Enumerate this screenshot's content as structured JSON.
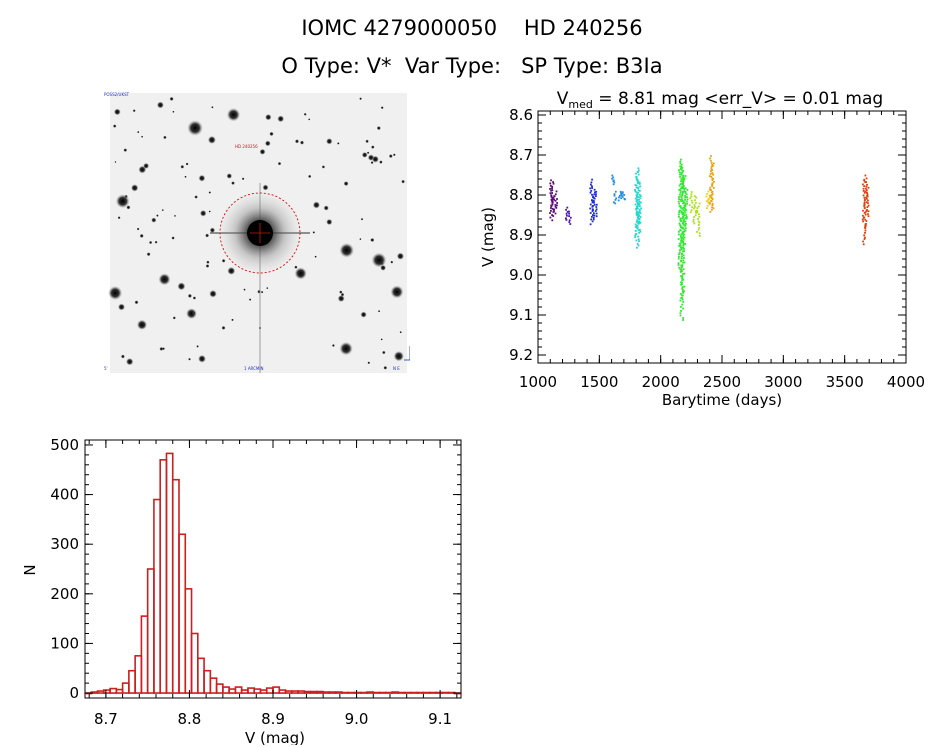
{
  "header": {
    "ids": "IOMC 4279000050    HD 240256",
    "types": "O Type: V*  Var Type:   SP Type: B3Ia"
  },
  "finder_chart": {
    "top_left_label": "POSS2/UKST",
    "center_label": "HD 240256",
    "bottom_left_label": "5'",
    "bottom_center_label": "1 ARCMIN",
    "bottom_right_label": "N E"
  },
  "chart_data": [
    {
      "type": "scatter",
      "title_prefix": "V",
      "title_sub": "med",
      "title_rest": " = 8.81 mag <err_V> = 0.01 mag",
      "xlabel": "Barytime (days)",
      "ylabel": "V (mag)",
      "xlim": [
        1000,
        4000
      ],
      "ylim": [
        9.22,
        8.59
      ],
      "xticks": [
        "1000",
        "1500",
        "2000",
        "2500",
        "3000",
        "3500",
        "4000"
      ],
      "yticks": [
        "8.6",
        "8.7",
        "8.8",
        "8.9",
        "9.0",
        "9.1",
        "9.2"
      ],
      "ytick_values": [
        8.6,
        8.7,
        8.8,
        8.9,
        9.0,
        9.1,
        9.2
      ],
      "series": [
        {
          "name": "s1",
          "color": "#5b0a7a",
          "x": [
            1100,
            1110,
            1125,
            1140
          ],
          "vmin": [
            8.77,
            8.76,
            8.8,
            8.79
          ],
          "vmax": [
            8.86,
            8.84,
            8.85,
            8.83
          ]
        },
        {
          "name": "s2",
          "color": "#4a12b0",
          "x": [
            1230,
            1250
          ],
          "vmin": [
            8.83,
            8.84
          ],
          "vmax": [
            8.86,
            8.87
          ]
        },
        {
          "name": "s3",
          "color": "#1f2be0",
          "x": [
            1430,
            1445,
            1460
          ],
          "vmin": [
            8.76,
            8.78,
            8.79
          ],
          "vmax": [
            8.87,
            8.86,
            8.85
          ]
        },
        {
          "name": "s4",
          "color": "#1a8ee8",
          "x": [
            1605,
            1620,
            1660,
            1690
          ],
          "vmin": [
            8.75,
            8.79,
            8.79,
            8.79
          ],
          "vmax": [
            8.77,
            8.82,
            8.81,
            8.81
          ]
        },
        {
          "name": "s5",
          "color": "#22d8cc",
          "x": [
            1795,
            1805,
            1815,
            1825
          ],
          "vmin": [
            8.74,
            8.73,
            8.76,
            8.8
          ],
          "vmax": [
            8.91,
            8.93,
            8.89,
            8.87
          ]
        },
        {
          "name": "s6",
          "color": "#2ee82e",
          "x": [
            2150,
            2165,
            2175,
            2185,
            2200
          ],
          "vmin": [
            8.72,
            8.71,
            8.73,
            8.75,
            8.78
          ],
          "vmax": [
            8.99,
            9.11,
            9.06,
            8.93,
            8.88
          ]
        },
        {
          "name": "s7",
          "color": "#a8e020",
          "x": [
            2240,
            2270,
            2300
          ],
          "vmin": [
            8.79,
            8.8,
            8.82
          ],
          "vmax": [
            8.84,
            8.87,
            8.9
          ]
        },
        {
          "name": "s8",
          "color": "#f0d020",
          "x": [
            2370,
            2385
          ],
          "vmin": [
            8.79,
            8.8
          ],
          "vmax": [
            8.83,
            8.82
          ]
        },
        {
          "name": "s9",
          "color": "#f0a010",
          "x": [
            2405,
            2415
          ],
          "vmin": [
            8.7,
            8.72
          ],
          "vmax": [
            8.84,
            8.83
          ]
        },
        {
          "name": "s10",
          "color": "#e04010",
          "x": [
            3650,
            3665,
            3680
          ],
          "vmin": [
            8.76,
            8.75,
            8.78
          ],
          "vmax": [
            8.92,
            8.88,
            8.85
          ]
        }
      ]
    },
    {
      "type": "bar",
      "title": "",
      "xlabel": "V (mag)",
      "ylabel": "N",
      "xlim": [
        8.675,
        9.125
      ],
      "ylim": [
        -10,
        510
      ],
      "xticks": [
        "8.7",
        "8.8",
        "8.9",
        "9.0",
        "9.1"
      ],
      "xtick_values": [
        8.7,
        8.8,
        8.9,
        9.0,
        9.1
      ],
      "yticks": [
        "0",
        "100",
        "200",
        "300",
        "400",
        "500"
      ],
      "ytick_values": [
        0,
        100,
        200,
        300,
        400,
        500
      ],
      "color": "#cc1f1f",
      "bin_start": 8.675,
      "bin_width": 0.0075,
      "values": [
        0,
        2,
        4,
        6,
        9,
        7,
        20,
        45,
        75,
        155,
        250,
        390,
        470,
        483,
        430,
        320,
        210,
        120,
        70,
        45,
        30,
        18,
        12,
        8,
        12,
        6,
        10,
        8,
        6,
        10,
        12,
        6,
        4,
        4,
        4,
        3,
        3,
        3,
        2,
        2,
        2,
        1,
        1,
        1,
        1,
        2,
        1,
        1,
        1,
        2,
        1,
        1,
        1,
        1,
        1,
        1,
        1,
        1,
        1,
        0
      ]
    }
  ]
}
